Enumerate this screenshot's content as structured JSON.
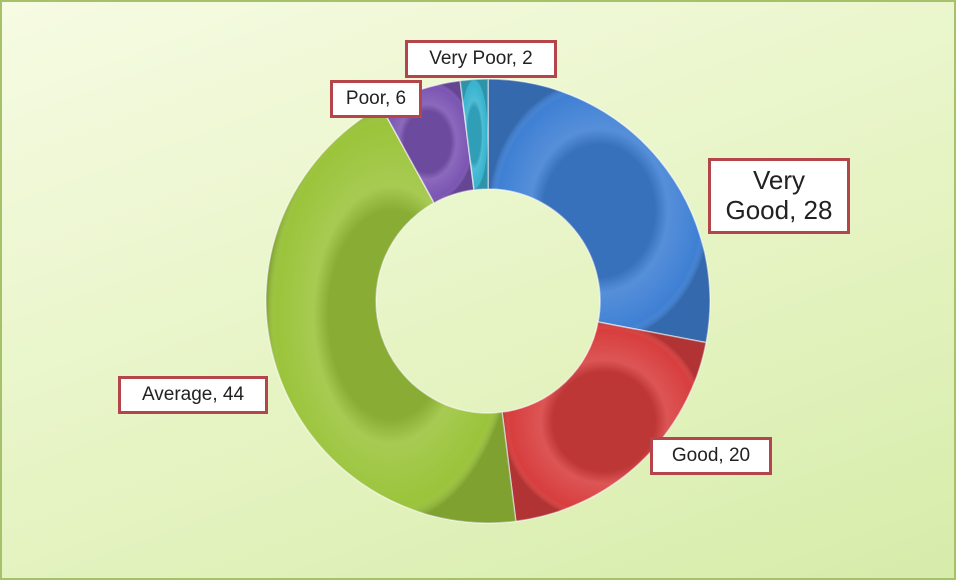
{
  "chart_data": {
    "type": "donut",
    "values": [
      28,
      20,
      44,
      6,
      2
    ],
    "value_labels": [
      "Very Good, 28",
      "Good, 20",
      "Average, 44",
      "Poor, 6",
      "Very Poor, 2"
    ],
    "colors": [
      "#3f80d4",
      "#d83e3e",
      "#9bc43b",
      "#7b55b3",
      "#37b4cf"
    ]
  }
}
